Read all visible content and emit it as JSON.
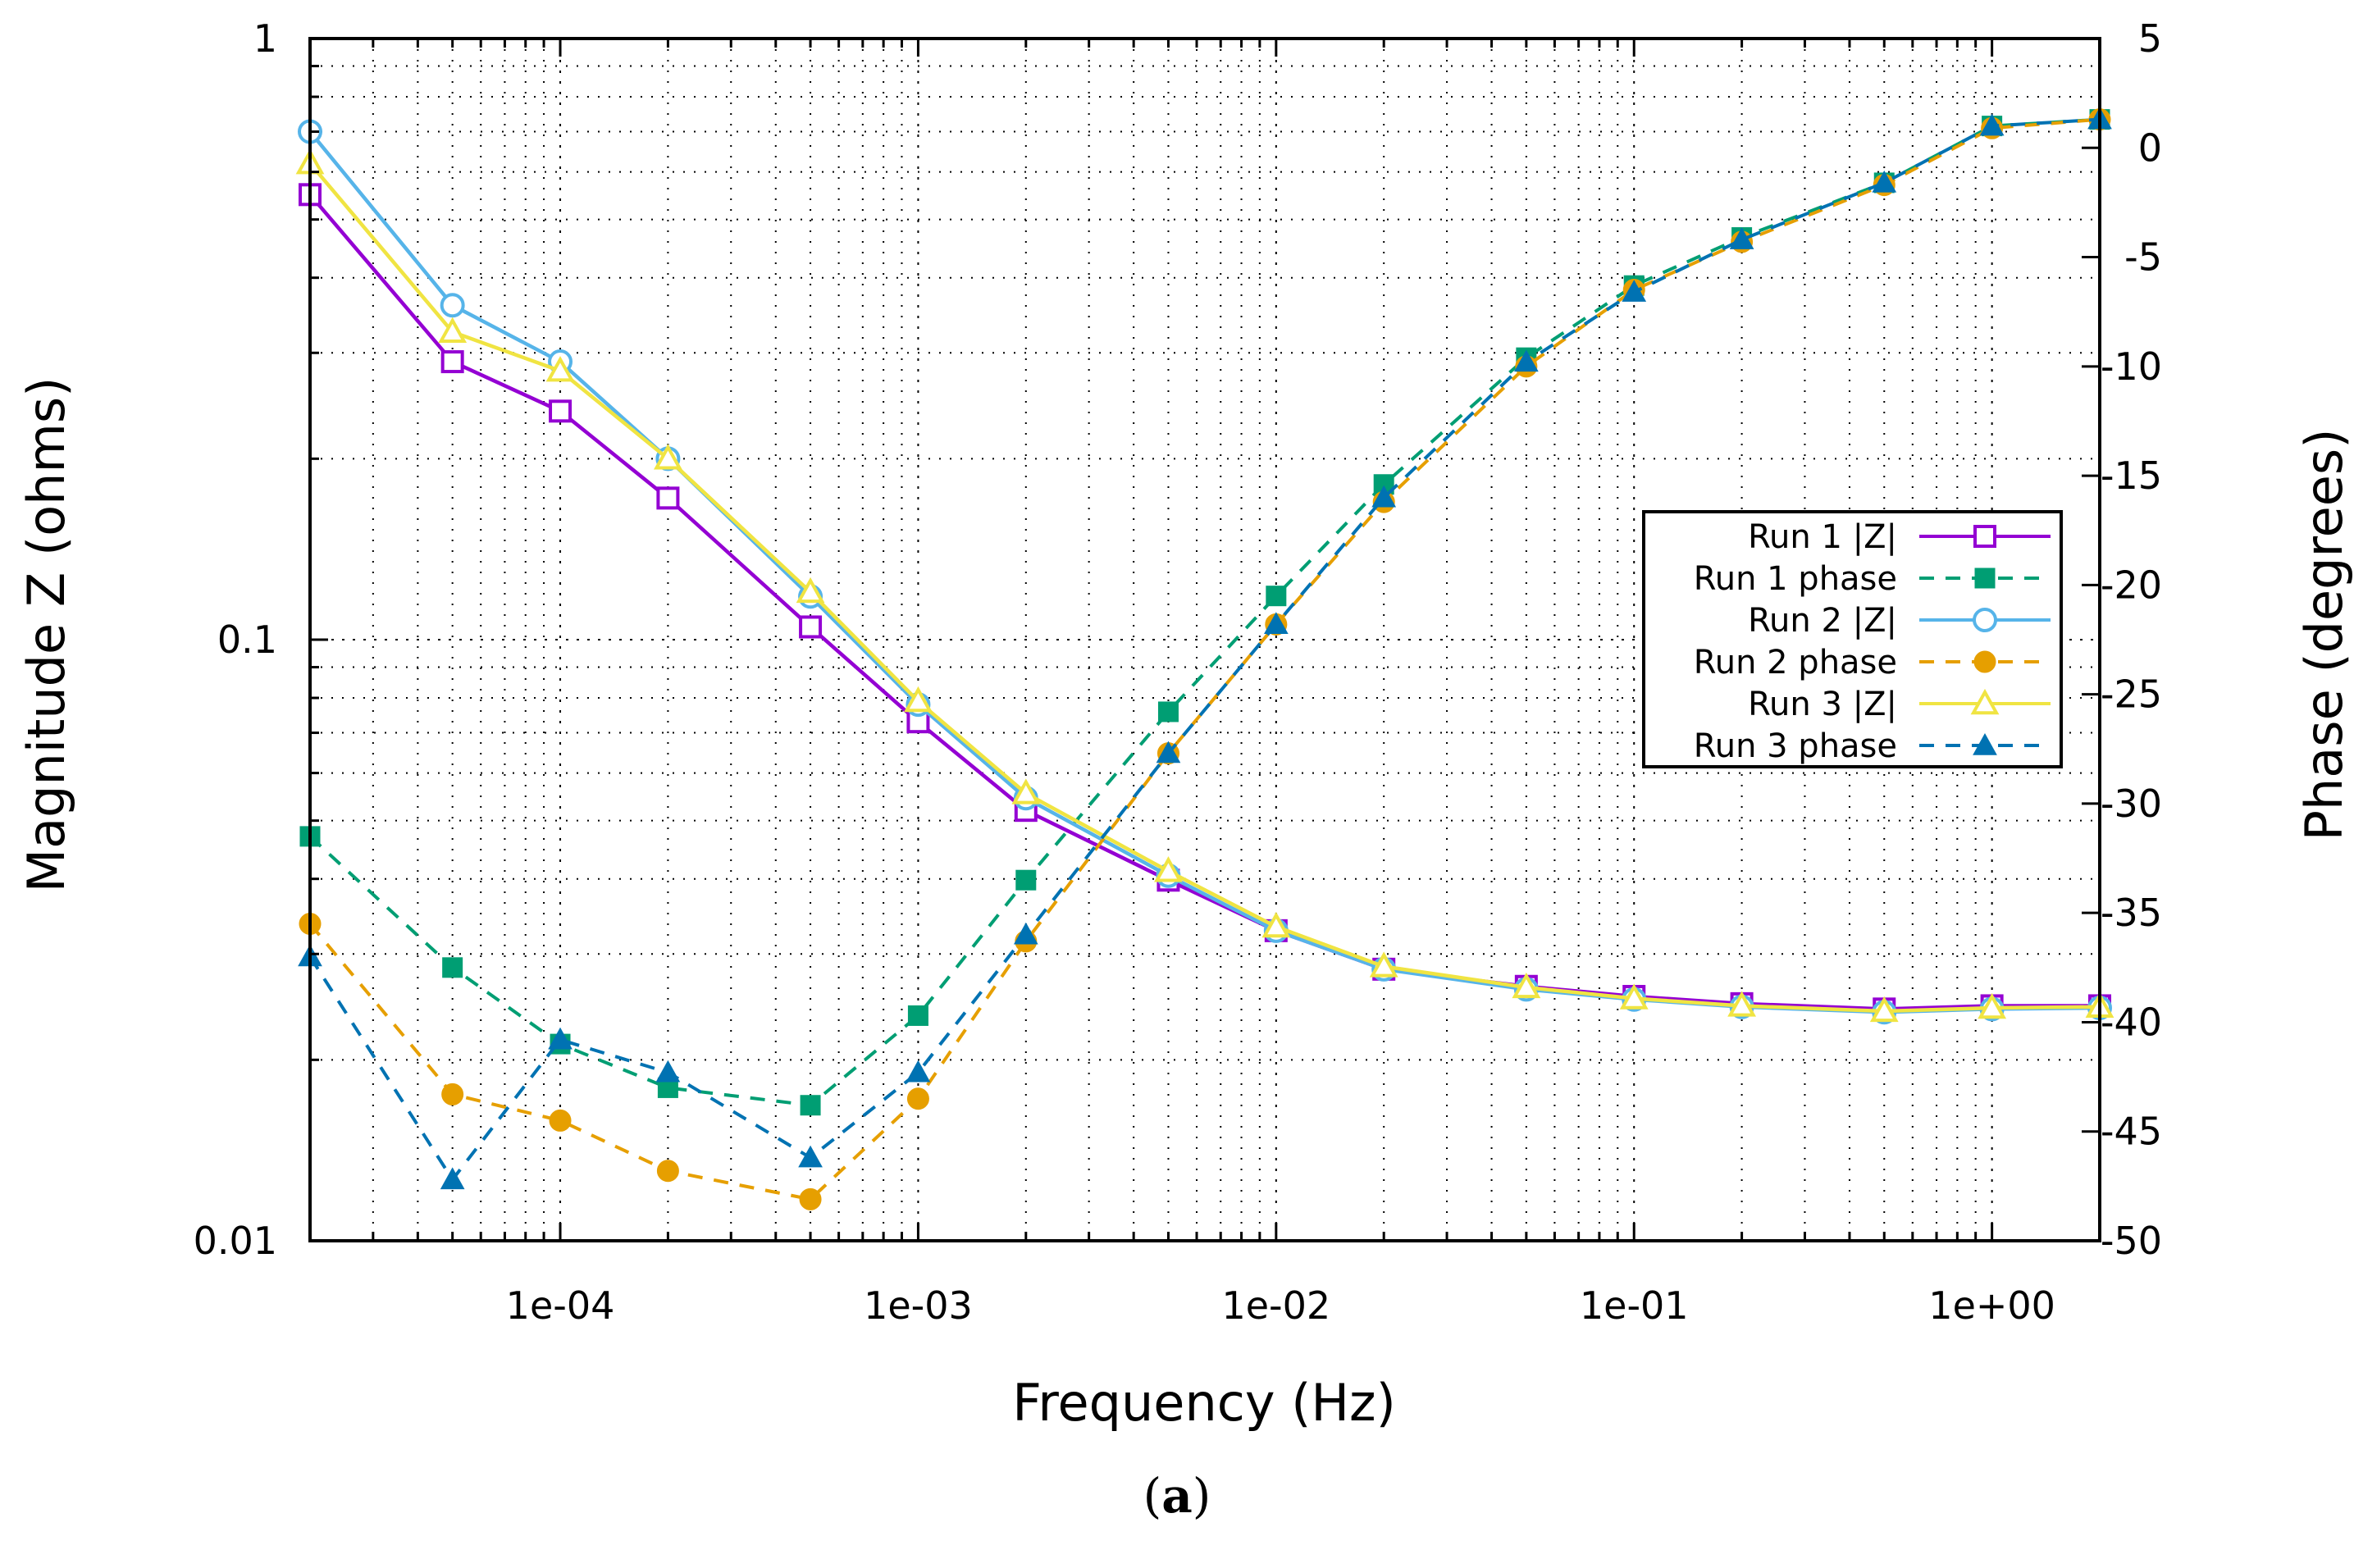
{
  "chart_data": {
    "type": "line",
    "title": "",
    "xlabel": "Frequency (Hz)",
    "ylabel": "Magnitude Z (ohms)",
    "y2label": "Phase (degrees)",
    "xscale": "log",
    "yscale": "log",
    "xlim": [
      2e-05,
      2
    ],
    "ylim": [
      0.01,
      1
    ],
    "y2lim": [
      -50,
      5
    ],
    "grid": true,
    "legend_position": "right-middle",
    "x_ticks": [
      "1e-04",
      "1e-03",
      "1e-02",
      "1e-01",
      "1e+00"
    ],
    "x_tick_values": [
      0.0001,
      0.001,
      0.01,
      0.1,
      1
    ],
    "y_ticks": [
      "0.01",
      "0.1",
      "1"
    ],
    "y_tick_values": [
      0.01,
      0.1,
      1
    ],
    "y2_ticks": [
      "5",
      "0",
      "-5",
      "-10",
      "-15",
      "-20",
      "-25",
      "-30",
      "-35",
      "-40",
      "-45",
      "-50"
    ],
    "y2_tick_values": [
      5,
      0,
      -5,
      -10,
      -15,
      -20,
      -25,
      -30,
      -35,
      -40,
      -45,
      -50
    ],
    "x": [
      2e-05,
      5e-05,
      0.0001,
      0.0002,
      0.0005,
      0.001,
      0.002,
      0.005,
      0.01,
      0.02,
      0.05,
      0.1,
      0.2,
      0.5,
      1,
      2
    ],
    "series": [
      {
        "name": "Run 1 |Z|",
        "axis": "y1",
        "color": "#9400d3",
        "dash": false,
        "marker": "square-open",
        "values": [
          0.55,
          0.29,
          0.24,
          0.172,
          0.105,
          0.073,
          0.052,
          0.0398,
          0.0328,
          0.0283,
          0.0265,
          0.0255,
          0.0248,
          0.0243,
          0.0246,
          0.0246
        ]
      },
      {
        "name": "Run 1 phase",
        "axis": "y2",
        "color": "#009e73",
        "dash": true,
        "marker": "square-filled",
        "values": [
          -31.5,
          -37.5,
          -41.0,
          -43.0,
          -43.8,
          -39.7,
          -33.5,
          -25.8,
          -20.5,
          -15.4,
          -9.6,
          -6.3,
          -4.1,
          -1.6,
          1.0,
          1.3
        ]
      },
      {
        "name": "Run 2 |Z|",
        "axis": "y1",
        "color": "#56b4e9",
        "dash": false,
        "marker": "circle-open",
        "values": [
          0.7,
          0.36,
          0.29,
          0.2,
          0.118,
          0.078,
          0.0545,
          0.0405,
          0.0328,
          0.0283,
          0.0262,
          0.0252,
          0.0245,
          0.024,
          0.0243,
          0.0244
        ]
      },
      {
        "name": "Run 2 phase",
        "axis": "y2",
        "color": "#e69f00",
        "dash": true,
        "marker": "circle-filled",
        "values": [
          -35.5,
          -43.3,
          -44.5,
          -46.8,
          -48.1,
          -43.5,
          -36.3,
          -27.7,
          -21.8,
          -16.2,
          -10.0,
          -6.5,
          -4.3,
          -1.7,
          0.9,
          1.3
        ]
      },
      {
        "name": "Run 3 |Z|",
        "axis": "y1",
        "color": "#f0e442",
        "dash": false,
        "marker": "triangle-open",
        "values": [
          0.62,
          0.325,
          0.28,
          0.2,
          0.12,
          0.079,
          0.0555,
          0.0412,
          0.0333,
          0.0286,
          0.0264,
          0.0253,
          0.0246,
          0.0241,
          0.0244,
          0.0245
        ]
      },
      {
        "name": "Run 3 phase",
        "axis": "y2",
        "color": "#0072b2",
        "dash": true,
        "marker": "triangle-filled",
        "values": [
          -37.0,
          -47.2,
          -40.8,
          -42.3,
          -46.2,
          -42.3,
          -36.0,
          -27.7,
          -21.8,
          -16.0,
          -9.8,
          -6.6,
          -4.2,
          -1.6,
          1.0,
          1.3
        ]
      }
    ]
  },
  "caption": {
    "label": "a"
  }
}
